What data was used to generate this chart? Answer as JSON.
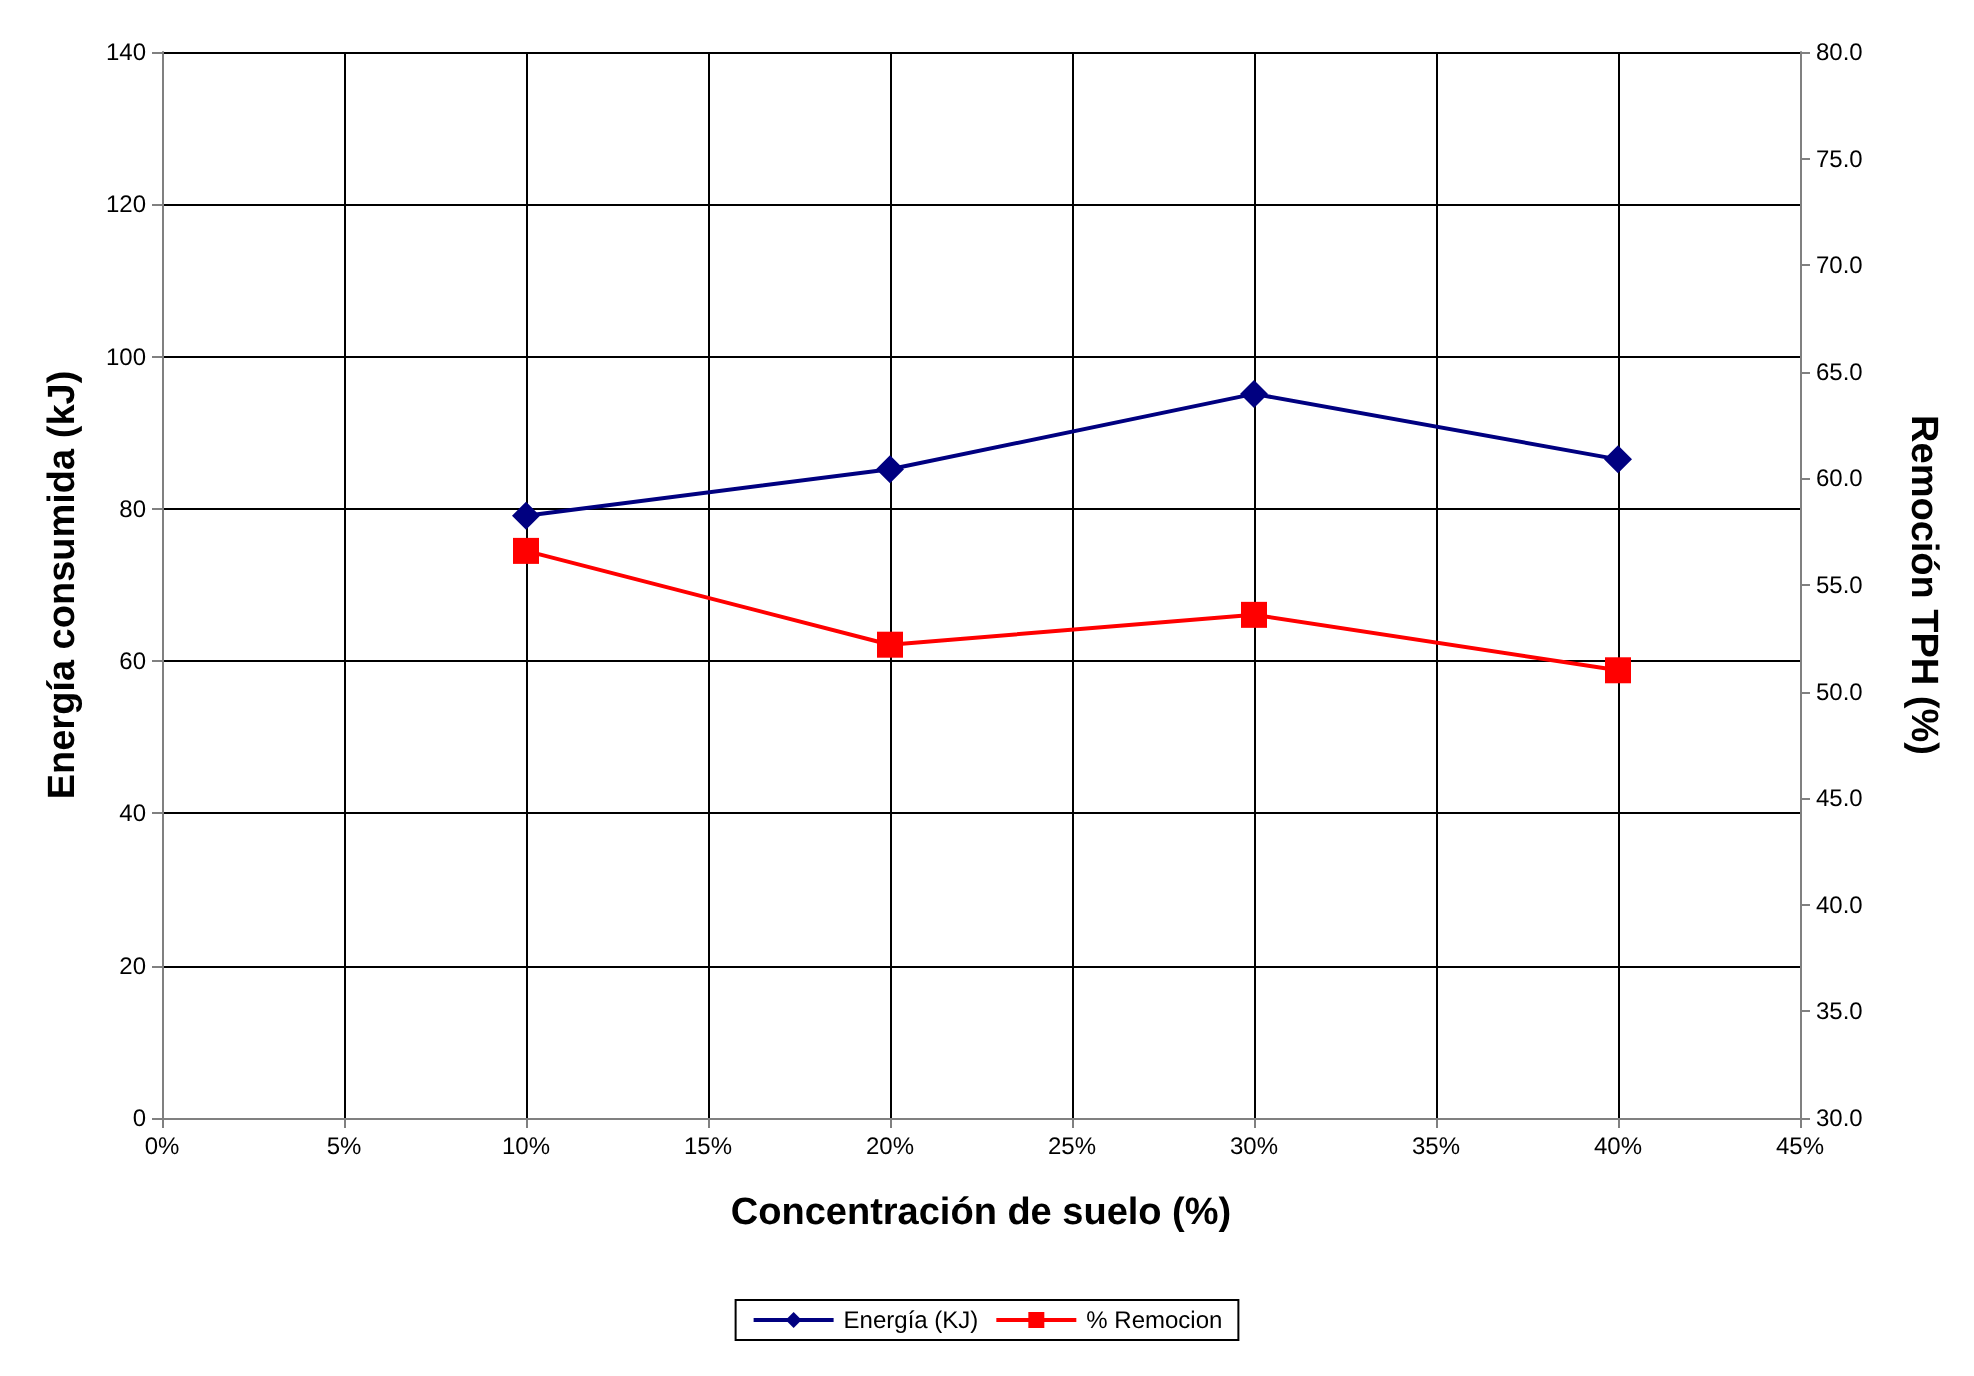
{
  "chart_data": {
    "type": "line",
    "xlabel": "Concentración de suelo (%)",
    "ylabel": "Energía consumida (kJ)",
    "y2label": "Remoción TPH (%)",
    "x": [
      10,
      20,
      30,
      40
    ],
    "series": [
      {
        "name": "Energía (KJ)",
        "color": "#000080",
        "marker": "diamond",
        "values": [
          79.1,
          85.2,
          95.1,
          86.5
        ]
      },
      {
        "name": "% Remocion",
        "color": "#ff0000",
        "marker": "square",
        "axis": "y2",
        "values": [
          56.6,
          52.2,
          53.6,
          51.0
        ]
      }
    ],
    "xlim": [
      0,
      45
    ],
    "xticks": [
      {
        "value": 0,
        "label": "0%"
      },
      {
        "value": 5,
        "label": "5%"
      },
      {
        "value": 10,
        "label": "10%"
      },
      {
        "value": 15,
        "label": "15%"
      },
      {
        "value": 20,
        "label": "20%"
      },
      {
        "value": 25,
        "label": "25%"
      },
      {
        "value": 30,
        "label": "30%"
      },
      {
        "value": 35,
        "label": "35%"
      },
      {
        "value": 40,
        "label": "40%"
      },
      {
        "value": 45,
        "label": "45%"
      }
    ],
    "ylim": [
      0,
      140
    ],
    "yticks": [
      0,
      20,
      40,
      60,
      80,
      100,
      120,
      140
    ],
    "y2lim": [
      30,
      80
    ],
    "y2ticks": [
      {
        "value": 30,
        "label": "30.0"
      },
      {
        "value": 35,
        "label": "35.0"
      },
      {
        "value": 40,
        "label": "40.0"
      },
      {
        "value": 45,
        "label": "45.0"
      },
      {
        "value": 50,
        "label": "50.0"
      },
      {
        "value": 55,
        "label": "55.0"
      },
      {
        "value": 60,
        "label": "60.0"
      },
      {
        "value": 65,
        "label": "65.0"
      },
      {
        "value": 70,
        "label": "70.0"
      },
      {
        "value": 75,
        "label": "75.0"
      },
      {
        "value": 80,
        "label": "80.0"
      }
    ],
    "grid": true,
    "legend": "bottom",
    "line_style": "solid"
  }
}
